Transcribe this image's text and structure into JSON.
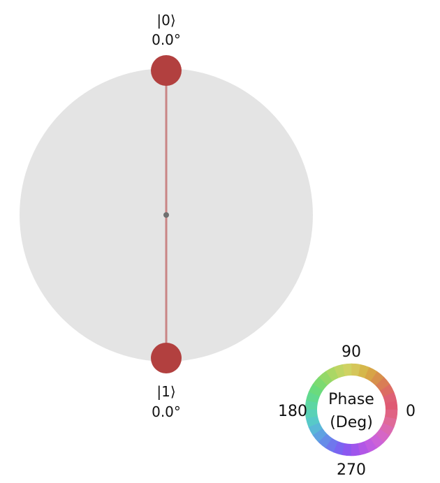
{
  "sphere": {
    "fill_color": "#e4e4e4",
    "line_color": "#c98585",
    "center_dot_color": "#6f7070"
  },
  "states": [
    {
      "label": "|0⟩",
      "phase_text": "0.0°",
      "phase_deg": 0.0,
      "marker_color": "#b2403f"
    },
    {
      "label": "|1⟩",
      "phase_text": "0.0°",
      "phase_deg": 0.0,
      "marker_color": "#b2403f"
    }
  ],
  "phase_wheel": {
    "title_line1": "Phase",
    "title_line2": "(Deg)",
    "labels": {
      "deg90": "90",
      "deg0": "0",
      "deg180": "180",
      "deg270": "270"
    }
  }
}
